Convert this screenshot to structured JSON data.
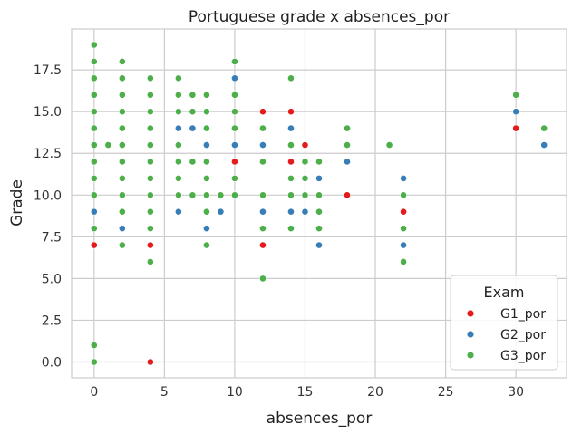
{
  "chart_data": {
    "type": "scatter",
    "title": "Portuguese grade x absences_por",
    "xlabel": "absences_por",
    "ylabel": "Grade",
    "xlim": [
      -1.6,
      33.6
    ],
    "ylim": [
      -0.95,
      19.95
    ],
    "xticks": [
      0,
      5,
      10,
      15,
      20,
      25,
      30
    ],
    "yticks": [
      0.0,
      2.5,
      5.0,
      7.5,
      10.0,
      12.5,
      15.0,
      17.5
    ],
    "ytick_labels": [
      "0.0",
      "2.5",
      "5.0",
      "7.5",
      "10.0",
      "12.5",
      "15.0",
      "17.5"
    ],
    "grid": true,
    "legend": {
      "title": "Exam",
      "position": "lower-right"
    },
    "series": [
      {
        "name": "G1_por",
        "color": "#e41a1c",
        "points": [
          [
            0,
            7
          ],
          [
            4,
            7
          ],
          [
            4,
            0
          ],
          [
            10,
            12
          ],
          [
            12,
            15
          ],
          [
            12,
            7
          ],
          [
            14,
            15
          ],
          [
            14,
            12
          ],
          [
            15,
            13
          ],
          [
            18,
            10
          ],
          [
            22,
            9
          ],
          [
            30,
            14
          ]
        ]
      },
      {
        "name": "G2_por",
        "color": "#377eb8",
        "points": [
          [
            0,
            9
          ],
          [
            2,
            8
          ],
          [
            6,
            14
          ],
          [
            6,
            9
          ],
          [
            7,
            14
          ],
          [
            8,
            13
          ],
          [
            8,
            8
          ],
          [
            9,
            9
          ],
          [
            10,
            17
          ],
          [
            10,
            13
          ],
          [
            12,
            13
          ],
          [
            12,
            9
          ],
          [
            14,
            14
          ],
          [
            14,
            9
          ],
          [
            15,
            9
          ],
          [
            16,
            11
          ],
          [
            16,
            7
          ],
          [
            18,
            12
          ],
          [
            22,
            11
          ],
          [
            22,
            7
          ],
          [
            30,
            15
          ],
          [
            32,
            13
          ]
        ]
      },
      {
        "name": "G3_por",
        "color": "#4daf4a",
        "points": [
          [
            0,
            19
          ],
          [
            0,
            18
          ],
          [
            0,
            17
          ],
          [
            0,
            16
          ],
          [
            0,
            15
          ],
          [
            0,
            14
          ],
          [
            0,
            13
          ],
          [
            0,
            12
          ],
          [
            0,
            11
          ],
          [
            0,
            10
          ],
          [
            0,
            8
          ],
          [
            0,
            1
          ],
          [
            0,
            0
          ],
          [
            1,
            13
          ],
          [
            2,
            18
          ],
          [
            2,
            17
          ],
          [
            2,
            16
          ],
          [
            2,
            15
          ],
          [
            2,
            14
          ],
          [
            2,
            13
          ],
          [
            2,
            12
          ],
          [
            2,
            11
          ],
          [
            2,
            10
          ],
          [
            2,
            9
          ],
          [
            2,
            7
          ],
          [
            4,
            17
          ],
          [
            4,
            16
          ],
          [
            4,
            15
          ],
          [
            4,
            14
          ],
          [
            4,
            13
          ],
          [
            4,
            12
          ],
          [
            4,
            11
          ],
          [
            4,
            10
          ],
          [
            4,
            9
          ],
          [
            4,
            8
          ],
          [
            4,
            6
          ],
          [
            6,
            17
          ],
          [
            6,
            16
          ],
          [
            6,
            15
          ],
          [
            6,
            13
          ],
          [
            6,
            12
          ],
          [
            6,
            11
          ],
          [
            6,
            10
          ],
          [
            7,
            16
          ],
          [
            7,
            15
          ],
          [
            7,
            12
          ],
          [
            7,
            10
          ],
          [
            8,
            16
          ],
          [
            8,
            15
          ],
          [
            8,
            14
          ],
          [
            8,
            12
          ],
          [
            8,
            11
          ],
          [
            8,
            10
          ],
          [
            8,
            9
          ],
          [
            8,
            7
          ],
          [
            9,
            10
          ],
          [
            10,
            18
          ],
          [
            10,
            16
          ],
          [
            10,
            15
          ],
          [
            10,
            14
          ],
          [
            10,
            11
          ],
          [
            10,
            10
          ],
          [
            12,
            14
          ],
          [
            12,
            12
          ],
          [
            12,
            10
          ],
          [
            12,
            8
          ],
          [
            12,
            5
          ],
          [
            14,
            17
          ],
          [
            14,
            13
          ],
          [
            14,
            11
          ],
          [
            14,
            10
          ],
          [
            14,
            8
          ],
          [
            15,
            12
          ],
          [
            15,
            11
          ],
          [
            15,
            10
          ],
          [
            16,
            12
          ],
          [
            16,
            10
          ],
          [
            16,
            9
          ],
          [
            16,
            8
          ],
          [
            18,
            14
          ],
          [
            18,
            13
          ],
          [
            21,
            13
          ],
          [
            22,
            10
          ],
          [
            22,
            8
          ],
          [
            22,
            6
          ],
          [
            30,
            16
          ],
          [
            32,
            14
          ]
        ]
      }
    ]
  }
}
